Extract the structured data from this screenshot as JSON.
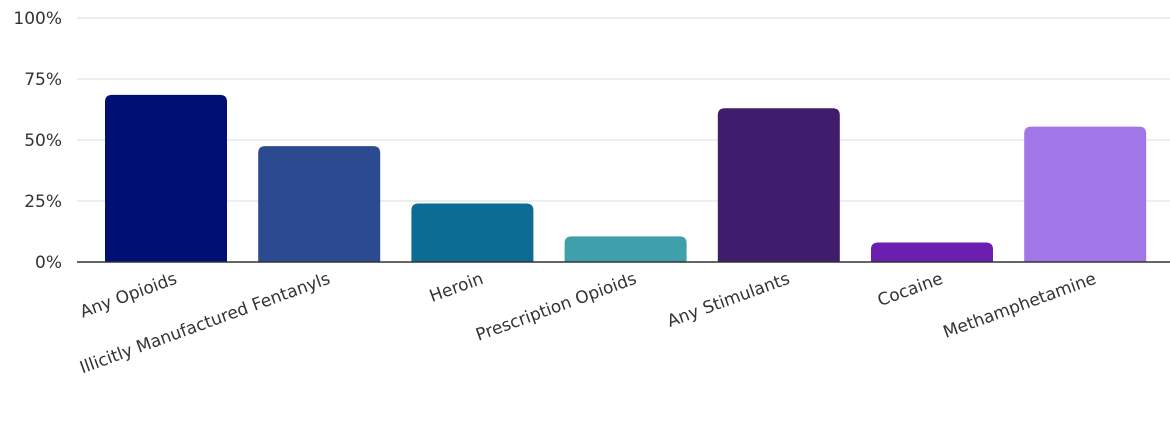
{
  "chart_data": {
    "type": "bar",
    "title": "",
    "xlabel": "",
    "ylabel": "",
    "ylim": [
      0,
      100
    ],
    "y_ticks": [
      "0%",
      "25%",
      "50%",
      "75%",
      "100%"
    ],
    "y_tick_values": [
      0,
      25,
      50,
      75,
      100
    ],
    "grid": true,
    "categories": [
      "Any Opioids",
      "Illicitly Manufactured Fentanyls",
      "Heroin",
      "Prescription Opioids",
      "Any Stimulants",
      "Cocaine",
      "Methamphetamine"
    ],
    "values": [
      68.5,
      47.5,
      24,
      10.5,
      63,
      8,
      55.5
    ],
    "colors": [
      "#000f73",
      "#2c4a90",
      "#0c6c93",
      "#3fa0ab",
      "#401c6c",
      "#6b1eaf",
      "#a177e8"
    ]
  }
}
